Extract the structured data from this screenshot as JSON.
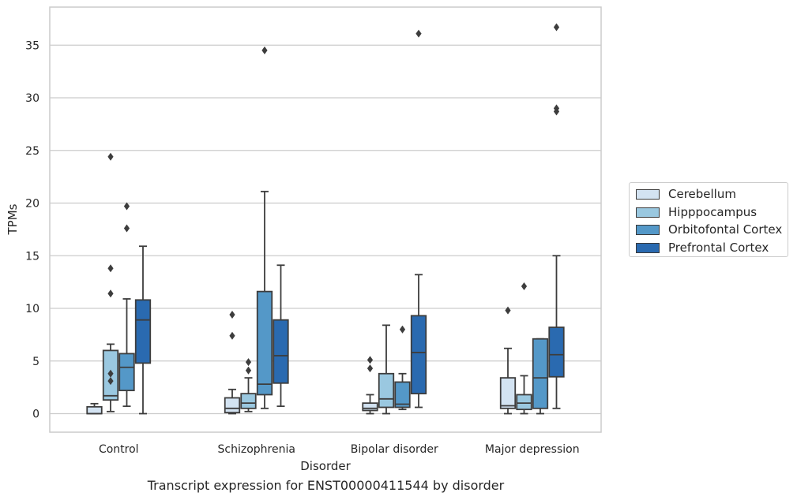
{
  "chart_data": {
    "type": "box",
    "xlabel": "Disorder",
    "ylabel": "TPMs",
    "caption": "Transcript expression for ENST00000411544 by disorder",
    "ylim": [
      -1.8,
      38.5
    ],
    "yticks": [
      0,
      5,
      10,
      15,
      20,
      25,
      30,
      35
    ],
    "grid": true,
    "legend_position": "right",
    "categories": [
      "Control",
      "Schizophrenia",
      "Bipolar disorder",
      "Major depression"
    ],
    "series": [
      {
        "name": "Cerebellum",
        "color": "#d3e3f2",
        "boxes": [
          {
            "whislo": 0.0,
            "q1": 0.0,
            "med": 0.0,
            "q3": 0.65,
            "whishi": 0.95,
            "fliers": []
          },
          {
            "whislo": 0.0,
            "q1": 0.1,
            "med": 0.5,
            "q3": 1.5,
            "whishi": 2.3,
            "fliers": [
              9.4,
              7.4
            ]
          },
          {
            "whislo": 0.0,
            "q1": 0.3,
            "med": 0.5,
            "q3": 1.0,
            "whishi": 1.8,
            "fliers": [
              5.1,
              4.3
            ]
          },
          {
            "whislo": 0.0,
            "q1": 0.5,
            "med": 0.75,
            "q3": 3.4,
            "whishi": 6.2,
            "fliers": [
              9.8
            ]
          }
        ]
      },
      {
        "name": "Hipppocampus",
        "color": "#9ac8e0",
        "boxes": [
          {
            "whislo": 0.2,
            "q1": 1.3,
            "med": 1.7,
            "q3": 6.0,
            "whishi": 6.6,
            "fliers": [
              24.4,
              13.8,
              11.4,
              3.8,
              3.1
            ]
          },
          {
            "whislo": 0.2,
            "q1": 0.5,
            "med": 1.0,
            "q3": 1.9,
            "whishi": 3.4,
            "fliers": [
              4.9,
              4.1
            ]
          },
          {
            "whislo": 0.0,
            "q1": 0.6,
            "med": 1.4,
            "q3": 3.8,
            "whishi": 8.4,
            "fliers": []
          },
          {
            "whislo": 0.0,
            "q1": 0.4,
            "med": 1.0,
            "q3": 1.8,
            "whishi": 3.6,
            "fliers": [
              12.1
            ]
          }
        ]
      },
      {
        "name": "Orbitofontal Cortex",
        "color": "#5498c8",
        "boxes": [
          {
            "whislo": 0.7,
            "q1": 2.2,
            "med": 4.4,
            "q3": 5.7,
            "whishi": 10.9,
            "fliers": [
              19.7,
              17.6
            ]
          },
          {
            "whislo": 0.5,
            "q1": 1.8,
            "med": 2.8,
            "q3": 11.6,
            "whishi": 21.1,
            "fliers": [
              34.5
            ]
          },
          {
            "whislo": 0.4,
            "q1": 0.6,
            "med": 0.9,
            "q3": 3.0,
            "whishi": 3.8,
            "fliers": [
              8.0
            ]
          },
          {
            "whislo": 0.0,
            "q1": 0.5,
            "med": 3.4,
            "q3": 7.1,
            "whishi": 7.1,
            "fliers": []
          }
        ]
      },
      {
        "name": "Prefrontal Cortex",
        "color": "#2a6ab0",
        "boxes": [
          {
            "whislo": 0.0,
            "q1": 4.8,
            "med": 8.9,
            "q3": 10.8,
            "whishi": 15.9,
            "fliers": []
          },
          {
            "whislo": 0.7,
            "q1": 2.9,
            "med": 5.5,
            "q3": 8.9,
            "whishi": 14.1,
            "fliers": []
          },
          {
            "whislo": 0.6,
            "q1": 1.9,
            "med": 5.8,
            "q3": 9.3,
            "whishi": 13.2,
            "fliers": [
              36.1
            ]
          },
          {
            "whislo": 0.5,
            "q1": 3.5,
            "med": 5.6,
            "q3": 8.2,
            "whishi": 15.0,
            "fliers": [
              36.7,
              29.0,
              28.7
            ]
          }
        ]
      }
    ]
  }
}
